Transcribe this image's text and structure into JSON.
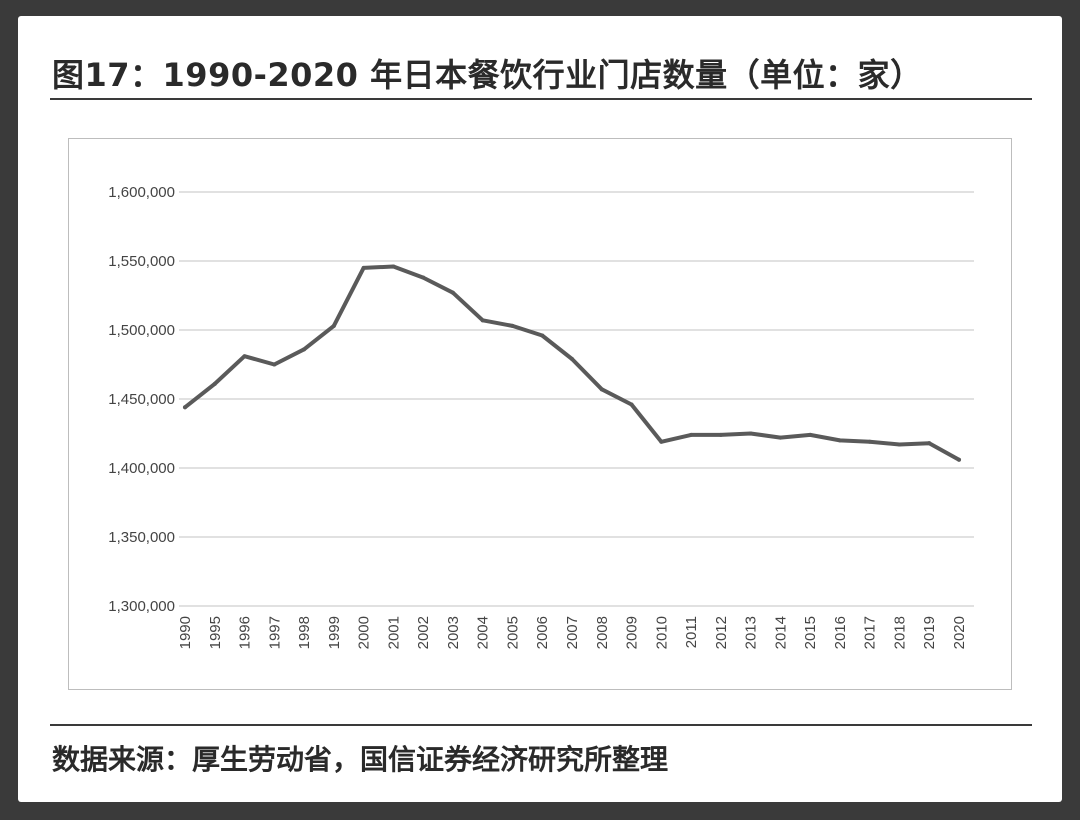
{
  "header": {
    "title": "图17：1990-2020 年日本餐饮行业门店数量（单位：家）"
  },
  "footer": {
    "source": "数据来源：厚生劳动省，国信证券经济研究所整理"
  },
  "chart_data": {
    "type": "line",
    "title": "图17：1990-2020 年日本餐饮行业门店数量（单位：家）",
    "xlabel": "",
    "ylabel": "",
    "ylim": [
      1300000,
      1600000
    ],
    "yticks": [
      1300000,
      1350000,
      1400000,
      1450000,
      1500000,
      1550000,
      1600000
    ],
    "ytick_labels": [
      "1,300,000",
      "1,350,000",
      "1,400,000",
      "1,450,000",
      "1,500,000",
      "1,550,000",
      "1,600,000"
    ],
    "grid": true,
    "legend": "none",
    "line_color": "#5a5a5a",
    "categories": [
      "1990",
      "1995",
      "1996",
      "1997",
      "1998",
      "1999",
      "2000",
      "2001",
      "2002",
      "2003",
      "2004",
      "2005",
      "2006",
      "2007",
      "2008",
      "2009",
      "2010",
      "2011",
      "2012",
      "2013",
      "2014",
      "2015",
      "2016",
      "2017",
      "2018",
      "2019",
      "2020"
    ],
    "values": [
      1444000,
      1461000,
      1481000,
      1475000,
      1486000,
      1503000,
      1545000,
      1546000,
      1538000,
      1527000,
      1507000,
      1503000,
      1496000,
      1479000,
      1457000,
      1446000,
      1419000,
      1424000,
      1424000,
      1425000,
      1422000,
      1424000,
      1420000,
      1419000,
      1417000,
      1418000,
      1406000
    ]
  }
}
